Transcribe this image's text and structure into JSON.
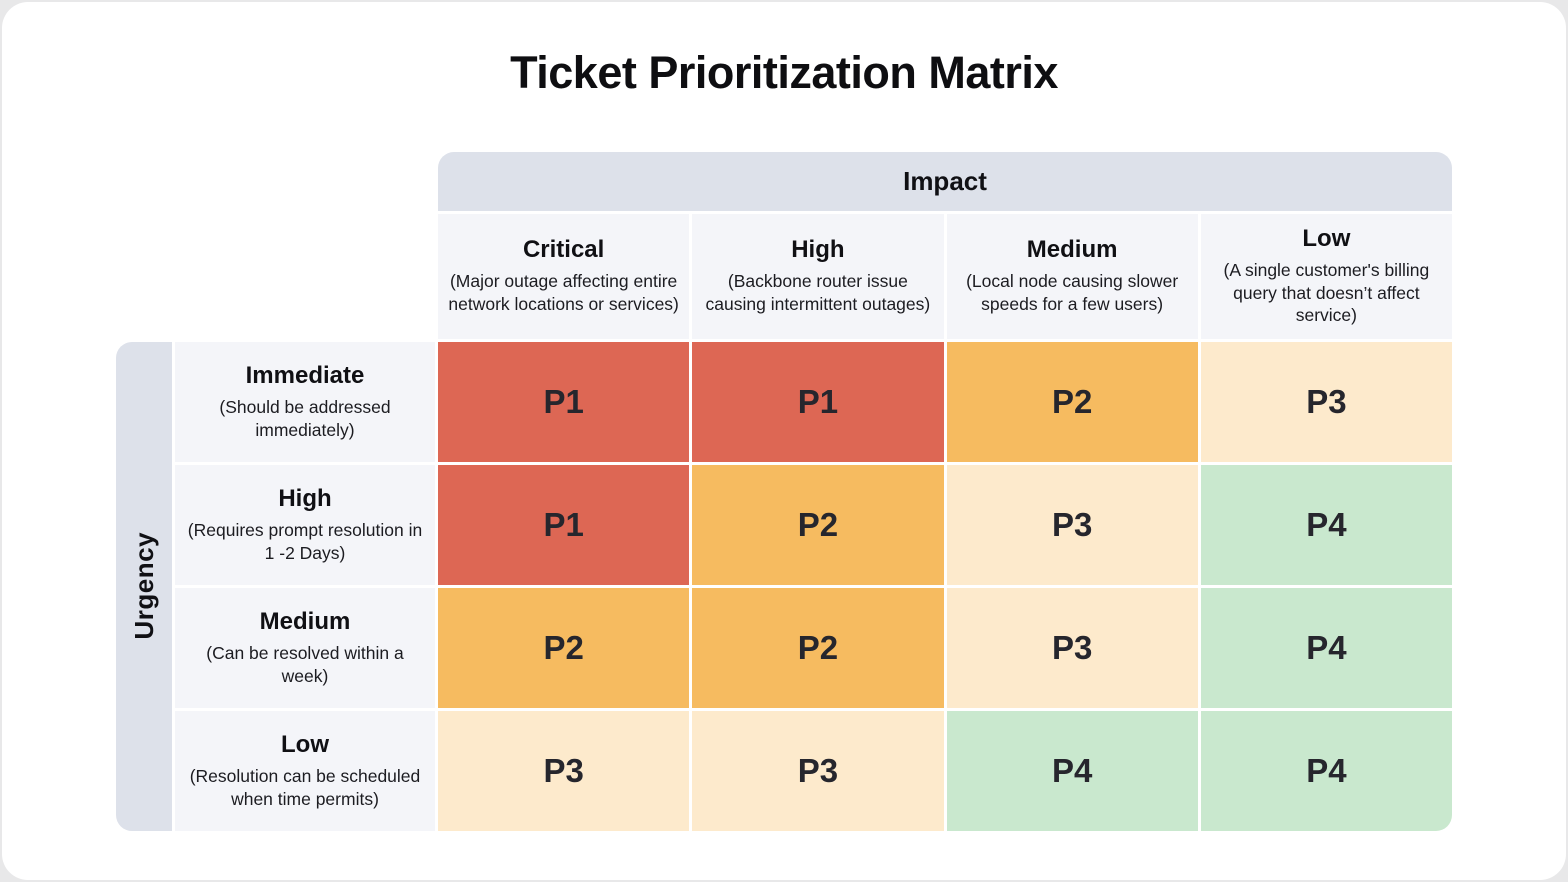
{
  "title": "Ticket Prioritization Matrix",
  "impact_axis_label": "Impact",
  "urgency_axis_label": "Urgency",
  "impact_levels": [
    {
      "label": "Critical",
      "description": "(Major outage affecting entire network locations or services)"
    },
    {
      "label": "High",
      "description": "(Backbone router issue causing intermittent outages)"
    },
    {
      "label": "Medium",
      "description": "(Local node causing slower speeds for a few users)"
    },
    {
      "label": "Low",
      "description": "(A single customer's billing query that doesn’t affect service)"
    }
  ],
  "urgency_levels": [
    {
      "label": "Immediate",
      "description": "(Should be addressed immediately)"
    },
    {
      "label": "High",
      "description": "(Requires prompt resolution in 1 -2 Days)"
    },
    {
      "label": "Medium",
      "description": "(Can be resolved within a week)"
    },
    {
      "label": "Low",
      "description": "(Resolution can be scheduled when time permits)"
    }
  ],
  "matrix": [
    [
      "P1",
      "P1",
      "P2",
      "P3"
    ],
    [
      "P1",
      "P2",
      "P3",
      "P4"
    ],
    [
      "P2",
      "P2",
      "P3",
      "P4"
    ],
    [
      "P3",
      "P3",
      "P4",
      "P4"
    ]
  ],
  "priority_colors": {
    "P1": "#DD6754",
    "P2": "#F6BB60",
    "P3": "#FDEACC",
    "P4": "#C9E8CE"
  },
  "colors": {
    "axis_bar": "#DDE1EA",
    "header_cell": "#F4F5F9",
    "card_background": "#FFFFFF"
  }
}
